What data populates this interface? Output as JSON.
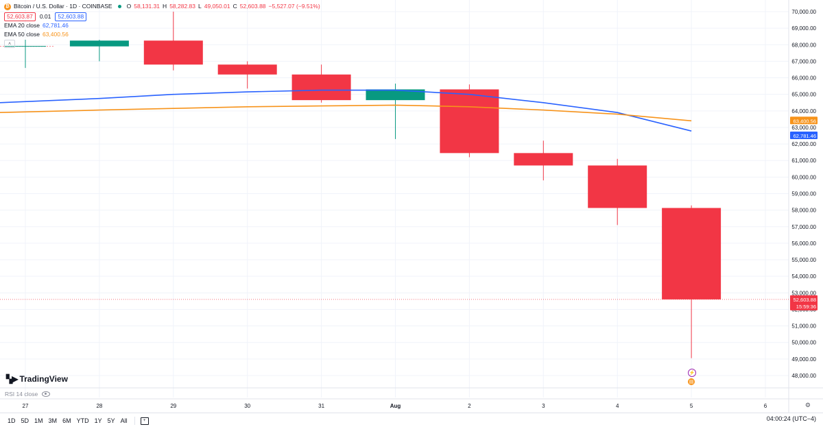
{
  "symbol": {
    "icon": "bitcoin-icon",
    "name": "Bitcoin / U.S. Dollar · 1D · COINBASE",
    "ohlc": {
      "o_label": "O",
      "o": "58,131.31",
      "h_label": "H",
      "h": "58,282.83",
      "l_label": "L",
      "l": "49,050.01",
      "c_label": "C",
      "c": "52,603.88",
      "change": "−5,527.07 (−9.51%)"
    },
    "bid": "52,603.87",
    "spread": "0.01",
    "ask": "52,603.88"
  },
  "indicators": [
    {
      "name": "EMA 20 close",
      "value": "62,781.46",
      "color": "#2962ff"
    },
    {
      "name": "EMA 50 close",
      "value": "63,400.56",
      "color": "#f7931a"
    }
  ],
  "rsi_label": "RSI 14 close",
  "logo_text": "TradingView",
  "price_tags": {
    "ema50": "63,400.56",
    "ema20": "62,781.46",
    "last_price": "52,603.88",
    "countdown": "15:59:36"
  },
  "ranges": [
    "1D",
    "5D",
    "1M",
    "3M",
    "6M",
    "YTD",
    "1Y",
    "5Y",
    "All"
  ],
  "clock": "04:00:24 (UTC−4)",
  "colors": {
    "up": "#089981",
    "down": "#f23645",
    "ema20": "#2962ff",
    "ema50": "#f7931a"
  },
  "chart_data": {
    "type": "candlestick",
    "x_ticks": [
      "27",
      "28",
      "29",
      "30",
      "31",
      "Aug",
      "2",
      "3",
      "4",
      "5",
      "6"
    ],
    "y_ticks": [
      "48,000.00",
      "49,000.00",
      "50,000.00",
      "51,000.00",
      "52,000.00",
      "53,000.00",
      "54,000.00",
      "55,000.00",
      "56,000.00",
      "57,000.00",
      "58,000.00",
      "59,000.00",
      "60,000.00",
      "61,000.00",
      "62,000.00",
      "63,000.00",
      "64,000.00",
      "65,000.00",
      "66,000.00",
      "67,000.00",
      "68,000.00",
      "69,000.00",
      "70,000.00"
    ],
    "ylim": [
      47500,
      70300
    ],
    "candles": [
      {
        "x": "27",
        "open": 67900,
        "high": 68300,
        "low": 66600,
        "close": 67900
      },
      {
        "x": "28",
        "open": 67900,
        "high": 68300,
        "low": 67000,
        "close": 68250
      },
      {
        "x": "29",
        "open": 68250,
        "high": 70000,
        "low": 66450,
        "close": 66800
      },
      {
        "x": "30",
        "open": 66800,
        "high": 67000,
        "low": 65350,
        "close": 66200
      },
      {
        "x": "31",
        "open": 66200,
        "high": 66800,
        "low": 64500,
        "close": 64650
      },
      {
        "x": "Aug",
        "open": 64650,
        "high": 65650,
        "low": 62300,
        "close": 65300
      },
      {
        "x": "2",
        "open": 65300,
        "high": 65600,
        "low": 61200,
        "close": 61450
      },
      {
        "x": "3",
        "open": 61450,
        "high": 62200,
        "low": 59800,
        "close": 60700
      },
      {
        "x": "4",
        "open": 60700,
        "high": 61100,
        "low": 57100,
        "close": 58131.31
      },
      {
        "x": "5",
        "open": 58131.31,
        "high": 58282.83,
        "low": 49050.01,
        "close": 52603.88
      }
    ],
    "series": [
      {
        "name": "EMA 20 close",
        "values": [
          64500,
          64750,
          65000,
          65150,
          65250,
          65250,
          65000,
          64500,
          63900,
          62781.46
        ]
      },
      {
        "name": "EMA 50 close",
        "values": [
          63900,
          64050,
          64150,
          64250,
          64300,
          64350,
          64250,
          64050,
          63800,
          63400.56
        ]
      }
    ],
    "grid": true
  }
}
